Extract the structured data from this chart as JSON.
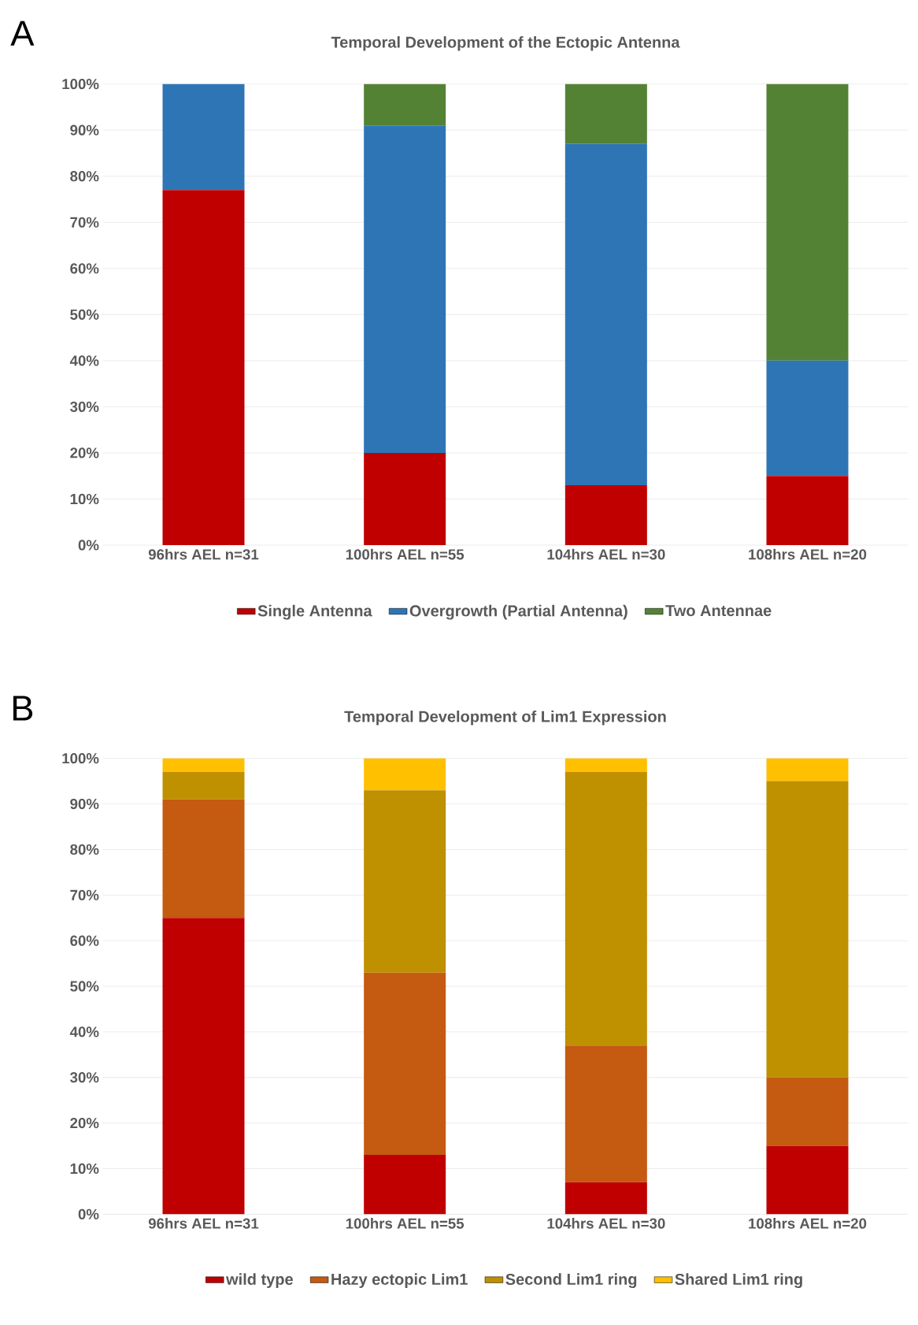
{
  "chart_data": [
    {
      "type": "bar",
      "stacked": true,
      "title": "Temporal Development of the Ectopic Antenna",
      "annotations": [
        "A"
      ],
      "categories": [
        "96hrs AEL n=31",
        "100hrs AEL n=55",
        "104hrs AEL n=30",
        "108hrs AEL n=20"
      ],
      "series": [
        {
          "name": "Single Antenna",
          "color": "#c00000",
          "values": [
            77,
            20,
            13,
            15
          ]
        },
        {
          "name": "Overgrowth (Partial Antenna)",
          "color": "#2e75b6",
          "values": [
            23,
            71,
            74,
            25
          ]
        },
        {
          "name": "Two Antennae",
          "color": "#548235",
          "values": [
            0,
            9,
            13,
            60
          ]
        }
      ],
      "ylim": [
        0,
        100
      ],
      "yticks": [
        {
          "value": 0,
          "label": "0%"
        },
        {
          "value": 10,
          "label": "10%"
        },
        {
          "value": 20,
          "label": "20%"
        },
        {
          "value": 30,
          "label": "30%"
        },
        {
          "value": 40,
          "label": "40%"
        },
        {
          "value": 50,
          "label": "50%"
        },
        {
          "value": 60,
          "label": "60%"
        },
        {
          "value": 70,
          "label": "70%"
        },
        {
          "value": 80,
          "label": "80%"
        },
        {
          "value": 90,
          "label": "90%"
        },
        {
          "value": 100,
          "label": "100%"
        }
      ],
      "grid": "y",
      "legend": "bottom"
    },
    {
      "type": "bar",
      "stacked": true,
      "title": "Temporal Development of Lim1 Expression",
      "annotations": [
        "B"
      ],
      "categories": [
        "96hrs AEL n=31",
        "100hrs AEL n=55",
        "104hrs AEL n=30",
        "108hrs AEL n=20"
      ],
      "series": [
        {
          "name": "wild type",
          "color": "#c00000",
          "values": [
            65,
            13,
            7,
            15
          ]
        },
        {
          "name": "Hazy ectopic Lim1",
          "color": "#c55a11",
          "values": [
            26,
            40,
            30,
            15
          ]
        },
        {
          "name": "Second Lim1 ring",
          "color": "#bf9000",
          "values": [
            6,
            40,
            60,
            65
          ]
        },
        {
          "name": "Shared Lim1 ring",
          "color": "#ffc000",
          "values": [
            3,
            7,
            3,
            5
          ]
        }
      ],
      "ylim": [
        0,
        100
      ],
      "yticks": [
        {
          "value": 0,
          "label": "0%"
        },
        {
          "value": 10,
          "label": "10%"
        },
        {
          "value": 20,
          "label": "20%"
        },
        {
          "value": 30,
          "label": "30%"
        },
        {
          "value": 40,
          "label": "40%"
        },
        {
          "value": 50,
          "label": "50%"
        },
        {
          "value": 60,
          "label": "60%"
        },
        {
          "value": 70,
          "label": "70%"
        },
        {
          "value": 80,
          "label": "80%"
        },
        {
          "value": 90,
          "label": "90%"
        },
        {
          "value": 100,
          "label": "100%"
        }
      ],
      "grid": "y",
      "legend": "bottom"
    }
  ]
}
